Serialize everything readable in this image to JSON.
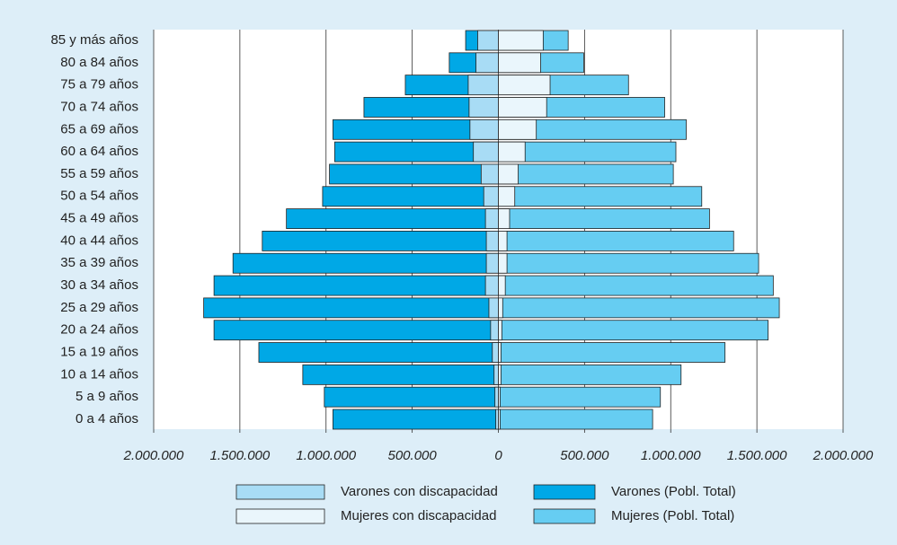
{
  "chart_data": {
    "type": "pyramid",
    "categories": [
      "0 a 4 años",
      "5 a 9 años",
      "10 a 14 años",
      "15 a 19 años",
      "20 a 24 años",
      "25 a 29 años",
      "30 a 34 años",
      "35 a 39 años",
      "40 a 44 años",
      "45 a 49 años",
      "50 a 54 años",
      "55 a 59 años",
      "60 a 64 años",
      "65 a 69 años",
      "70 a 74 años",
      "75 a 79 años",
      "80 a 84 años",
      "85 y más años"
    ],
    "series": [
      {
        "name": "Varones con discapacidad",
        "color": "#a8dcf5",
        "side": "left",
        "values": [
          15000,
          20000,
          25000,
          35000,
          45000,
          55000,
          75000,
          70000,
          70000,
          75000,
          85000,
          100000,
          145000,
          165000,
          170000,
          175000,
          130000,
          120000
        ]
      },
      {
        "name": "Mujeres con discapacidad",
        "color": "#eaf6fc",
        "side": "right",
        "values": [
          10000,
          10000,
          15000,
          15000,
          20000,
          25000,
          40000,
          50000,
          50000,
          65000,
          95000,
          115000,
          155000,
          220000,
          280000,
          300000,
          245000,
          260000
        ]
      },
      {
        "name": "Varones (Pobl. Total)",
        "color": "#00a8e6",
        "side": "left",
        "values": [
          960000,
          1010000,
          1135000,
          1390000,
          1650000,
          1710000,
          1650000,
          1540000,
          1370000,
          1230000,
          1020000,
          980000,
          950000,
          960000,
          780000,
          540000,
          285000,
          190000
        ]
      },
      {
        "name": "Mujeres (Pobl. Total)",
        "color": "#66cdf2",
        "side": "right",
        "values": [
          895000,
          940000,
          1060000,
          1315000,
          1565000,
          1630000,
          1595000,
          1510000,
          1365000,
          1225000,
          1180000,
          1015000,
          1030000,
          1090000,
          965000,
          755000,
          495000,
          405000
        ]
      }
    ],
    "xlim": [
      0,
      2000000
    ],
    "xticks": [
      0,
      {
        "value": 500000,
        "label": "500.000"
      },
      {
        "value": 1000000,
        "label": "1.000.000"
      },
      {
        "value": 1500000,
        "label": "1.500.000"
      },
      {
        "value": 2000000,
        "label": "2.000.000"
      }
    ],
    "grid": true
  }
}
